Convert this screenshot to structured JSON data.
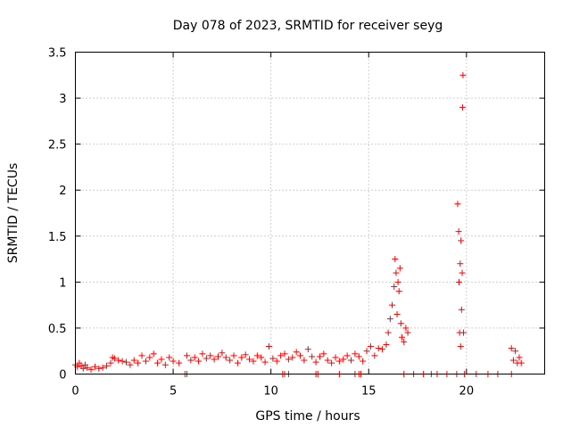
{
  "chart_data": {
    "type": "scatter",
    "title": "Day 078 of 2023, SRMTID for receiver seyg",
    "xlabel": "GPS time / hours",
    "ylabel": "SRMTID / TECUs",
    "xlim": [
      0,
      24
    ],
    "ylim": [
      0,
      3.5
    ],
    "grid": true,
    "x_ticks": [
      0,
      5,
      10,
      15,
      20
    ],
    "x_tick_labels": [
      "0",
      "5",
      "10",
      "15",
      "20"
    ],
    "y_ticks": [
      0,
      0.5,
      1,
      1.5,
      2,
      2.5,
      3,
      3.5
    ],
    "y_tick_labels": [
      "0",
      "0.5",
      "1",
      "1.5",
      "2",
      "2.5",
      "3",
      "3.5"
    ],
    "marker": "+",
    "series": [
      {
        "name": "SRMTID",
        "color": "#ff0000",
        "x": [
          0.0,
          0.1,
          0.2,
          0.3,
          0.4,
          0.5,
          0.6,
          0.8,
          1.0,
          1.2,
          1.4,
          1.6,
          1.8,
          1.9,
          2.0,
          2.2,
          2.4,
          2.6,
          2.8,
          3.0,
          3.2,
          3.4,
          3.6,
          3.8,
          4.0,
          4.2,
          4.4,
          4.6,
          4.8,
          5.0,
          5.3,
          5.7,
          5.9,
          6.1,
          6.3,
          6.5,
          6.7,
          6.9,
          7.1,
          7.3,
          7.5,
          7.7,
          7.9,
          8.1,
          8.3,
          8.5,
          8.7,
          8.9,
          9.1,
          9.3,
          9.5,
          9.7,
          9.9,
          10.1,
          10.3,
          10.5,
          10.7,
          10.9,
          11.1,
          11.3,
          11.5,
          11.7,
          11.9,
          12.1,
          12.3,
          12.5,
          12.7,
          12.9,
          13.1,
          13.3,
          13.5,
          13.7,
          13.9,
          14.1,
          14.3,
          14.5,
          14.7,
          14.9,
          15.1,
          15.3,
          15.5,
          15.7,
          15.9,
          16.0,
          16.1,
          16.2,
          16.3,
          16.35,
          16.4,
          16.45,
          16.5,
          16.55,
          16.6,
          16.65,
          16.7,
          16.8,
          16.9,
          17.0,
          19.55,
          19.6,
          19.62,
          19.65,
          19.68,
          19.7,
          19.72,
          19.75,
          19.78,
          19.8,
          19.82,
          19.85,
          22.3,
          22.4,
          22.5,
          22.6,
          22.7,
          22.8
        ],
        "y": [
          0.1,
          0.08,
          0.12,
          0.09,
          0.06,
          0.1,
          0.07,
          0.05,
          0.08,
          0.06,
          0.07,
          0.09,
          0.12,
          0.18,
          0.17,
          0.15,
          0.14,
          0.13,
          0.1,
          0.15,
          0.12,
          0.2,
          0.14,
          0.18,
          0.22,
          0.12,
          0.16,
          0.1,
          0.18,
          0.14,
          0.12,
          0.2,
          0.15,
          0.18,
          0.14,
          0.22,
          0.17,
          0.2,
          0.16,
          0.19,
          0.23,
          0.18,
          0.15,
          0.2,
          0.12,
          0.18,
          0.21,
          0.16,
          0.14,
          0.2,
          0.18,
          0.13,
          0.3,
          0.17,
          0.14,
          0.2,
          0.22,
          0.16,
          0.18,
          0.24,
          0.2,
          0.15,
          0.27,
          0.19,
          0.13,
          0.19,
          0.22,
          0.15,
          0.12,
          0.18,
          0.14,
          0.16,
          0.2,
          0.15,
          0.22,
          0.19,
          0.14,
          0.25,
          0.3,
          0.2,
          0.28,
          0.27,
          0.32,
          0.45,
          0.6,
          0.75,
          0.95,
          1.25,
          1.1,
          0.65,
          1.0,
          0.9,
          1.15,
          0.55,
          0.4,
          0.35,
          0.5,
          0.45,
          1.85,
          1.55,
          1.0,
          0.45,
          1.2,
          0.3,
          1.45,
          0.7,
          1.1,
          2.9,
          3.25,
          0.45,
          0.28,
          0.15,
          0.25,
          0.12,
          0.18,
          0.12
        ],
        "zero_x": [
          5.6,
          5.7,
          10.6,
          10.7,
          10.9,
          12.3,
          12.4,
          13.5,
          14.3,
          14.5,
          14.6,
          16.8,
          17.3,
          17.8,
          18.2,
          18.5,
          19.0,
          19.5,
          19.9,
          20.5,
          21.1,
          21.6,
          22.3
        ]
      }
    ]
  }
}
